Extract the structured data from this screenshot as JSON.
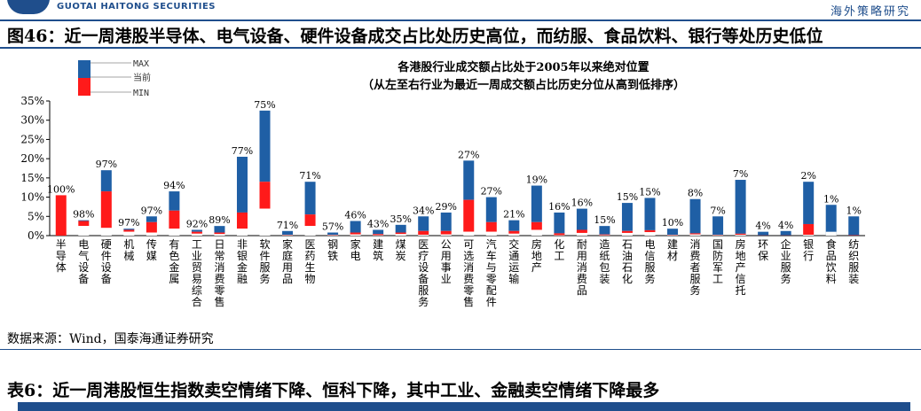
{
  "header": {
    "brand_text": "GUOTAI HAITONG SECURITIES",
    "right_text": "海外策略研究"
  },
  "figure_title": "图46：近一周港股半导体、电气设备、硬件设备成交占比处历史高位，而纺服、食品饮料、银行等处历史低位",
  "source_note": "数据来源：Wind，国泰海通证券研究",
  "table_title": "表6：近一周港股恒生指数卖空情绪下降、恒科下降，其中工业、金融卖空情绪下降最多",
  "colors": {
    "max": "#1f5fa5",
    "current": "#ff1a1a",
    "min": "#ffffff"
  },
  "chart_data": {
    "type": "bar",
    "title": "各港股行业成交额占比处于2005年以来绝对位置",
    "subtitle": "（从左至右行业为最近一周成交额占比历史分位从高到低排序）",
    "legend": [
      "MAX",
      "当前",
      "MIN"
    ],
    "legend_position": "top-left",
    "ylim": [
      0,
      35
    ],
    "yticks": [
      "0%",
      "5%",
      "10%",
      "15%",
      "20%",
      "25%",
      "30%",
      "35%"
    ],
    "grid": false,
    "categories": [
      "半导体",
      "电气设备",
      "硬件设备",
      "机械",
      "传媒",
      "有色金属",
      "工业贸易综合",
      "日常消费零售",
      "非银金融",
      "软件服务",
      "家庭用品",
      "医药生物",
      "钢铁",
      "家电",
      "建筑",
      "煤炭",
      "医疗设备服务",
      "公用事业",
      "可选消费零售",
      "汽车与零配件",
      "交通运输",
      "房地产",
      "化工",
      "耐用消费品",
      "造纸包装",
      "石油石化",
      "电信服务",
      "建材",
      "消费者服务",
      "国防军工",
      "房地产信托",
      "环保",
      "企业服务",
      "银行",
      "食品饮料",
      "纺织服装"
    ],
    "max": [
      10.5,
      4.0,
      17.0,
      1.8,
      5.0,
      11.5,
      1.5,
      2.5,
      20.5,
      32.5,
      1.2,
      14.0,
      0.8,
      3.8,
      1.5,
      2.8,
      5.0,
      6.0,
      19.5,
      10.0,
      4.0,
      13.0,
      6.0,
      7.0,
      2.5,
      8.5,
      9.8,
      1.8,
      9.5,
      5.0,
      14.5,
      1.0,
      1.2,
      14.0,
      8.0,
      5.0
    ],
    "current": [
      10.5,
      3.8,
      11.5,
      1.5,
      3.5,
      6.5,
      1.0,
      0.8,
      6.0,
      14.0,
      0.2,
      5.5,
      0.2,
      0.8,
      0.4,
      0.8,
      1.2,
      1.2,
      9.3,
      3.5,
      1.2,
      3.5,
      0.6,
      1.5,
      0.3,
      1.2,
      1.4,
      0.2,
      0.6,
      0.2,
      0.5,
      0.05,
      0.05,
      3.0,
      0.2,
      0.1
    ],
    "min": [
      0.0,
      2.5,
      2.0,
      1.0,
      0.8,
      1.8,
      0.5,
      0.4,
      1.8,
      7.0,
      0.1,
      2.5,
      0.1,
      0.3,
      0.1,
      0.4,
      0.2,
      0.3,
      1.0,
      1.0,
      0.5,
      1.5,
      0.1,
      0.7,
      0.1,
      0.7,
      0.9,
      0.1,
      0.3,
      0.1,
      0.2,
      0.0,
      0.0,
      0.2,
      1.0,
      0.0
    ],
    "data_labels": [
      "100%",
      "98%",
      "97%",
      "97%",
      "97%",
      "94%",
      "92%",
      "89%",
      "77%",
      "75%",
      "71%",
      "71%",
      "57%",
      "46%",
      "43%",
      "35%",
      "34%",
      "29%",
      "27%",
      "27%",
      "21%",
      "19%",
      "16%",
      "16%",
      "15%",
      "15%",
      "15%",
      "10%",
      "8%",
      "7%",
      "7%",
      "4%",
      "4%",
      "2%",
      "1%",
      "1%"
    ]
  }
}
